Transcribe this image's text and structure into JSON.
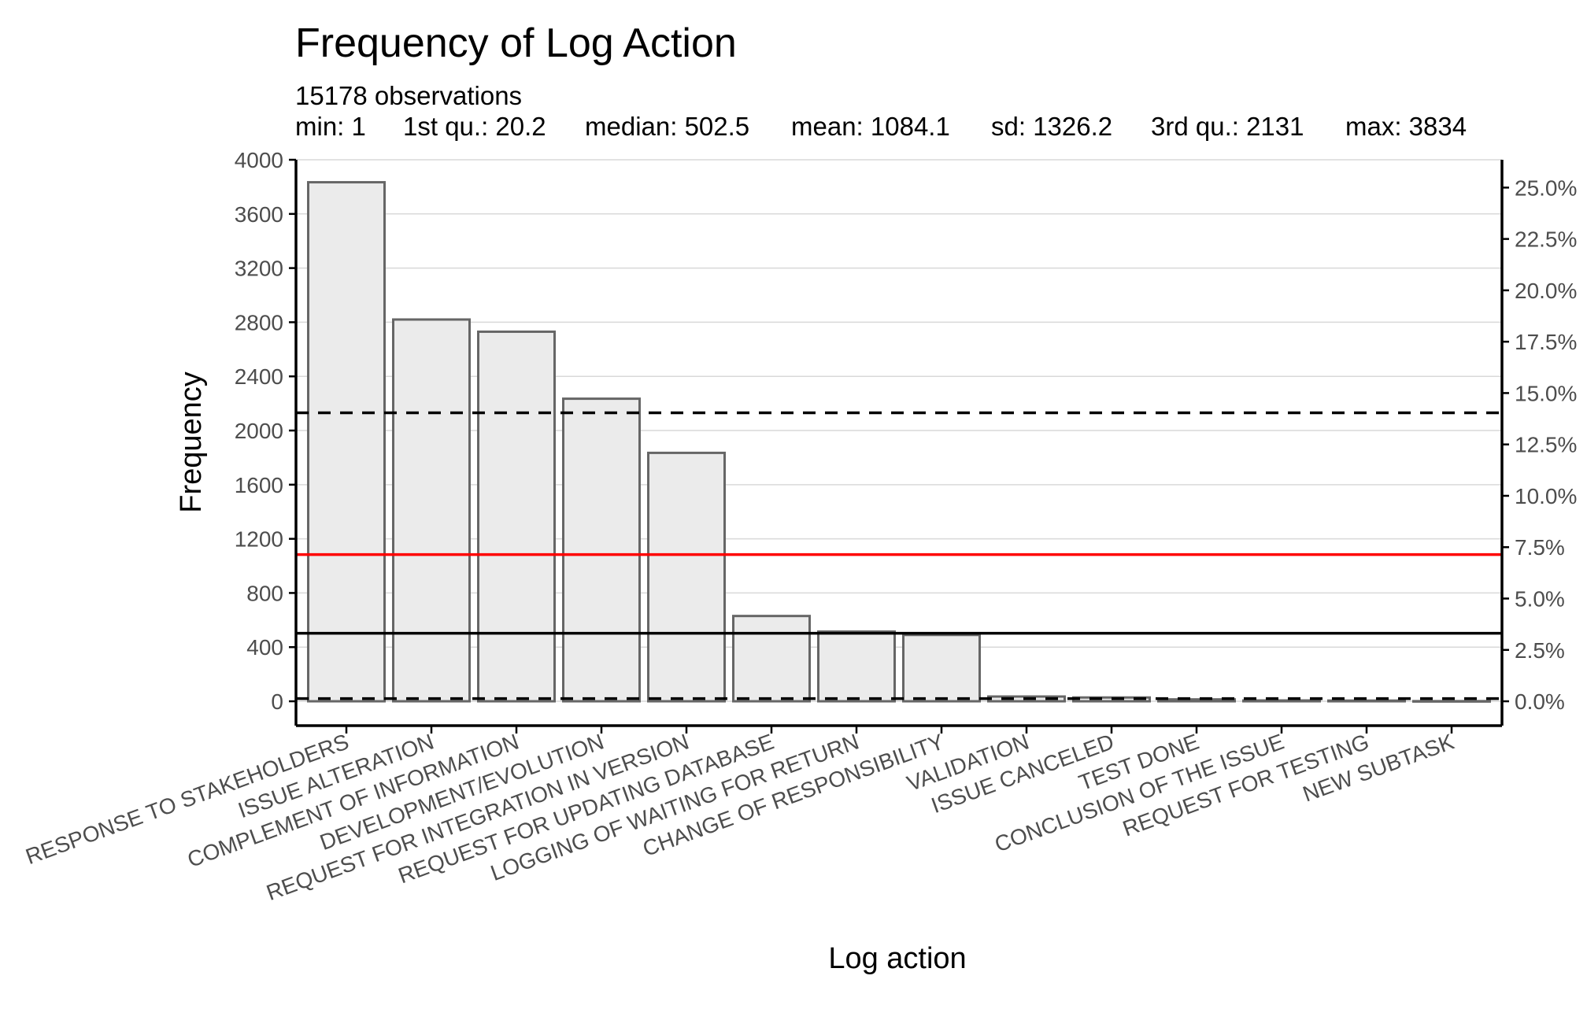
{
  "chart_data": {
    "type": "bar",
    "title": "Frequency of Log Action",
    "subtitle": "15178 observations",
    "stats": [
      {
        "label": "min: 1"
      },
      {
        "label": "1st qu.: 20.2"
      },
      {
        "label": "median: 502.5"
      },
      {
        "label": "mean: 1084.1"
      },
      {
        "label": "sd: 1326.2"
      },
      {
        "label": "3rd qu.: 2131"
      },
      {
        "label": "max: 3834"
      }
    ],
    "xlabel": "Log action",
    "ylabel": "Frequency",
    "categories": [
      "RESPONSE TO STAKEHOLDERS",
      "ISSUE ALTERATION",
      "COMPLEMENT OF INFORMATION",
      "DEVELOPMENT/EVOLUTION",
      "REQUEST FOR INTEGRATION IN VERSION",
      "REQUEST FOR UPDATING DATABASE",
      "LOGGING OF WAITING FOR RETURN",
      "CHANGE OF RESPONSIBILITY",
      "VALIDATION",
      "ISSUE CANCELED",
      "TEST DONE",
      "CONCLUSION OF THE ISSUE",
      "REQUEST FOR TESTING",
      "NEW SUBTASK"
    ],
    "values": [
      3834,
      2820,
      2730,
      2235,
      1835,
      630,
      515,
      490,
      35,
      28,
      14,
      6,
      5,
      1
    ],
    "ylim": [
      -180,
      4000
    ],
    "yticks": [
      "0",
      "400",
      "800",
      "1200",
      "1600",
      "2000",
      "2400",
      "2800",
      "3200",
      "3600",
      "4000"
    ],
    "y2ticks": [
      "0.0%",
      "2.5%",
      "5.0%",
      "7.5%",
      "10.0%",
      "12.5%",
      "15.0%",
      "17.5%",
      "20.0%",
      "22.5%",
      "25.0%"
    ],
    "y2_values_percent": [
      0,
      2.5,
      5,
      7.5,
      10,
      12.5,
      15,
      17.5,
      20,
      22.5,
      25
    ],
    "total": 15178,
    "reference_lines": [
      {
        "stat": "1st qu.",
        "value": 20.2,
        "color": "#000000",
        "style": "dashed"
      },
      {
        "stat": "median",
        "value": 502.5,
        "color": "#000000",
        "style": "solid"
      },
      {
        "stat": "mean",
        "value": 1084.1,
        "color": "#ff0000",
        "style": "solid"
      },
      {
        "stat": "3rd qu.",
        "value": 2131,
        "color": "#000000",
        "style": "dashed"
      }
    ],
    "bar_fill": "#ebebeb",
    "bar_stroke": "#666666",
    "grid": true,
    "legend": "none"
  }
}
